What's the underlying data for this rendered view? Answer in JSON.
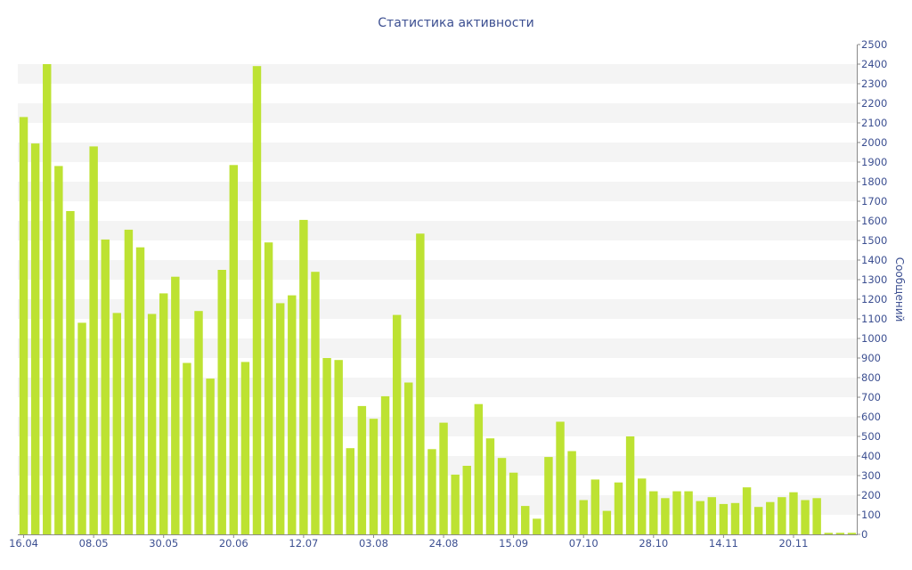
{
  "chart_data": {
    "type": "bar",
    "title": "Статистика активности",
    "ylabel": "Сообщений",
    "ylim": [
      0,
      2500
    ],
    "y_axis_side": "right",
    "grid": true,
    "yticks": [
      0,
      100,
      200,
      300,
      400,
      500,
      600,
      700,
      800,
      900,
      1000,
      1100,
      1200,
      1300,
      1400,
      1500,
      1600,
      1700,
      1800,
      1900,
      2000,
      2100,
      2200,
      2300,
      2400,
      2500
    ],
    "categories": [
      "16.04",
      "",
      "",
      "",
      "",
      "",
      "08.05",
      "",
      "",
      "",
      "",
      "",
      "30.05",
      "",
      "",
      "",
      "",
      "",
      "20.06",
      "",
      "",
      "",
      "",
      "",
      "12.07",
      "",
      "",
      "",
      "",
      "",
      "03.08",
      "",
      "",
      "",
      "",
      "",
      "24.08",
      "",
      "",
      "",
      "",
      "",
      "15.09",
      "",
      "",
      "",
      "",
      "",
      "07.10",
      "",
      "",
      "",
      "",
      "",
      "28.10",
      "",
      "",
      "",
      "",
      "",
      "14.11",
      "",
      "",
      "",
      "",
      "",
      "20.11",
      "",
      "",
      "",
      "",
      ""
    ],
    "values": [
      2130,
      1995,
      2400,
      1880,
      1650,
      1080,
      1980,
      1505,
      1130,
      1555,
      1465,
      1125,
      1230,
      1315,
      875,
      1140,
      795,
      1350,
      1885,
      880,
      2390,
      1490,
      1180,
      1220,
      1605,
      1340,
      900,
      890,
      440,
      655,
      590,
      705,
      1120,
      775,
      1535,
      435,
      570,
      305,
      350,
      665,
      490,
      390,
      315,
      145,
      80,
      395,
      575,
      425,
      175,
      280,
      120,
      265,
      500,
      285,
      220,
      185,
      220,
      220,
      170,
      190,
      155,
      160,
      240,
      140,
      165,
      190,
      215,
      175,
      185,
      8,
      8,
      8
    ]
  },
  "colors": {
    "bar": "#bde232",
    "text": "#3c4f91",
    "band": "#f4f4f4",
    "axis": "#8a8a8a"
  }
}
